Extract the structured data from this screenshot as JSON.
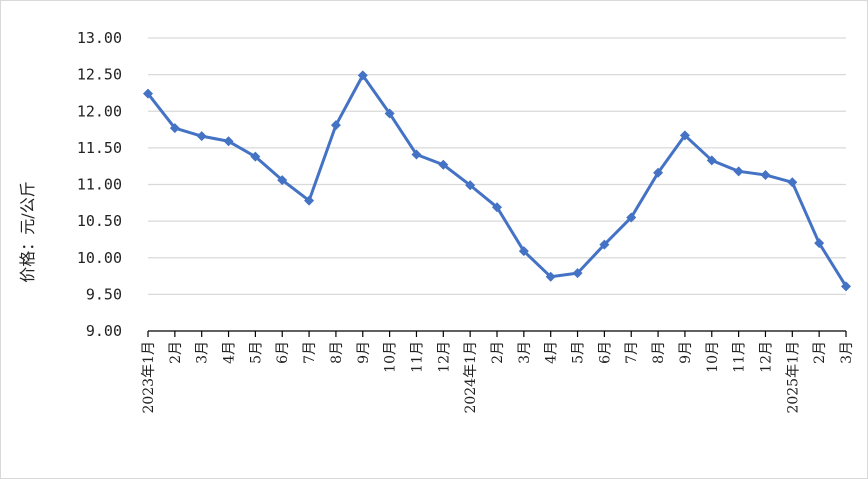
{
  "chart_data": {
    "type": "line",
    "title": "",
    "xlabel": "",
    "ylabel": "价格：元/公斤",
    "ylim": [
      9.0,
      13.0
    ],
    "yticks": [
      "13.00",
      "12.50",
      "12.00",
      "11.50",
      "11.00",
      "10.50",
      "10.00",
      "9.50",
      "9.00"
    ],
    "grid": true,
    "legend": "none",
    "color": "#4472C4",
    "marker": "diamond",
    "categories": [
      "2023年1月",
      "2月",
      "3月",
      "4月",
      "5月",
      "6月",
      "7月",
      "8月",
      "9月",
      "10月",
      "11月",
      "12月",
      "2024年1月",
      "2月",
      "3月",
      "4月",
      "5月",
      "6月",
      "7月",
      "8月",
      "9月",
      "10月",
      "11月",
      "12月",
      "2025年1月",
      "2月",
      "3月"
    ],
    "series": [
      {
        "values": [
          12.24,
          11.77,
          11.66,
          11.59,
          11.38,
          11.06,
          10.78,
          11.81,
          12.49,
          11.97,
          11.41,
          11.27,
          10.99,
          10.69,
          10.09,
          9.74,
          9.79,
          10.18,
          10.55,
          11.16,
          11.67,
          11.33,
          11.18,
          11.13,
          11.03,
          10.2,
          9.61
        ]
      }
    ]
  }
}
